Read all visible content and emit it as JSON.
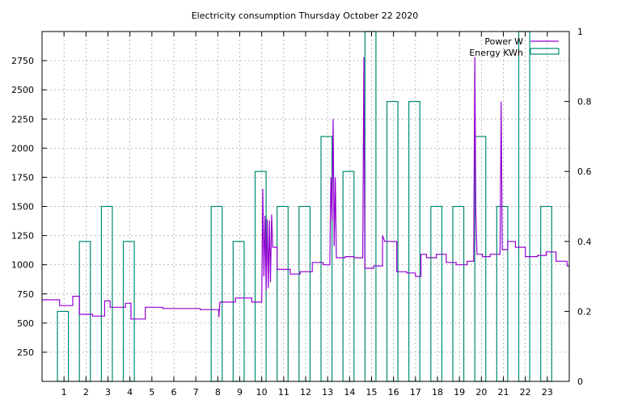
{
  "chart_data": {
    "type": "line",
    "title": "Electricity consumption Thursday October 22 2020",
    "xlabel": "",
    "ylabel": "",
    "y2label": "",
    "xlim": [
      0,
      24
    ],
    "ylim": [
      0,
      3000
    ],
    "y2lim": [
      0,
      1
    ],
    "x_ticks": [
      1,
      2,
      3,
      4,
      5,
      6,
      7,
      8,
      9,
      10,
      11,
      12,
      13,
      14,
      15,
      16,
      17,
      18,
      19,
      20,
      21,
      22,
      23
    ],
    "y_ticks": [
      250,
      500,
      750,
      1000,
      1250,
      1500,
      1750,
      2000,
      2250,
      2500,
      2750
    ],
    "y2_ticks": [
      0,
      0.2,
      0.4,
      0.6,
      0.8,
      1
    ],
    "grid": true,
    "legend_position": "top-right",
    "series": [
      {
        "name": "Power W",
        "kind": "step-line",
        "axis": "y",
        "color": "#9400d3",
        "points": [
          [
            0.0,
            700
          ],
          [
            0.8,
            700
          ],
          [
            0.8,
            650
          ],
          [
            1.4,
            650
          ],
          [
            1.4,
            730
          ],
          [
            1.7,
            730
          ],
          [
            1.7,
            575
          ],
          [
            2.3,
            575
          ],
          [
            2.3,
            560
          ],
          [
            2.85,
            560
          ],
          [
            2.85,
            690
          ],
          [
            3.1,
            690
          ],
          [
            3.1,
            635
          ],
          [
            3.8,
            635
          ],
          [
            3.8,
            670
          ],
          [
            4.05,
            670
          ],
          [
            4.05,
            535
          ],
          [
            4.7,
            535
          ],
          [
            4.7,
            635
          ],
          [
            5.5,
            635
          ],
          [
            5.5,
            625
          ],
          [
            7.2,
            625
          ],
          [
            7.2,
            615
          ],
          [
            8.05,
            615
          ],
          [
            8.05,
            550
          ],
          [
            8.1,
            680
          ],
          [
            8.8,
            680
          ],
          [
            8.8,
            715
          ],
          [
            9.55,
            715
          ],
          [
            9.55,
            680
          ],
          [
            10.0,
            680
          ],
          [
            10.05,
            1650
          ],
          [
            10.1,
            900
          ],
          [
            10.15,
            1420
          ],
          [
            10.2,
            780
          ],
          [
            10.25,
            1390
          ],
          [
            10.3,
            800
          ],
          [
            10.35,
            1380
          ],
          [
            10.4,
            850
          ],
          [
            10.45,
            1430
          ],
          [
            10.5,
            1150
          ],
          [
            10.7,
            1150
          ],
          [
            10.7,
            960
          ],
          [
            11.3,
            960
          ],
          [
            11.3,
            920
          ],
          [
            11.75,
            920
          ],
          [
            11.75,
            940
          ],
          [
            12.3,
            940
          ],
          [
            12.3,
            1020
          ],
          [
            12.8,
            1020
          ],
          [
            12.8,
            1000
          ],
          [
            13.1,
            1000
          ],
          [
            13.15,
            1750
          ],
          [
            13.2,
            1380
          ],
          [
            13.25,
            2250
          ],
          [
            13.3,
            1160
          ],
          [
            13.35,
            1750
          ],
          [
            13.4,
            1060
          ],
          [
            13.8,
            1060
          ],
          [
            13.8,
            1070
          ],
          [
            14.2,
            1070
          ],
          [
            14.2,
            1060
          ],
          [
            14.6,
            1060
          ],
          [
            14.65,
            2780
          ],
          [
            14.7,
            970
          ],
          [
            15.1,
            970
          ],
          [
            15.1,
            990
          ],
          [
            15.5,
            990
          ],
          [
            15.5,
            1250
          ],
          [
            15.6,
            1200
          ],
          [
            16.15,
            1200
          ],
          [
            16.15,
            940
          ],
          [
            16.6,
            940
          ],
          [
            16.6,
            930
          ],
          [
            17.0,
            930
          ],
          [
            17.0,
            900
          ],
          [
            17.25,
            900
          ],
          [
            17.25,
            1090
          ],
          [
            17.5,
            1090
          ],
          [
            17.5,
            1060
          ],
          [
            17.95,
            1060
          ],
          [
            17.95,
            1090
          ],
          [
            18.4,
            1090
          ],
          [
            18.4,
            1020
          ],
          [
            18.85,
            1020
          ],
          [
            18.85,
            1000
          ],
          [
            19.35,
            1000
          ],
          [
            19.35,
            1030
          ],
          [
            19.65,
            1030
          ],
          [
            19.7,
            2780
          ],
          [
            19.75,
            1440
          ],
          [
            19.8,
            1090
          ],
          [
            20.05,
            1090
          ],
          [
            20.05,
            1070
          ],
          [
            20.4,
            1070
          ],
          [
            20.4,
            1090
          ],
          [
            20.85,
            1090
          ],
          [
            20.9,
            2400
          ],
          [
            20.95,
            1130
          ],
          [
            21.2,
            1130
          ],
          [
            21.2,
            1200
          ],
          [
            21.55,
            1200
          ],
          [
            21.55,
            1150
          ],
          [
            22.0,
            1150
          ],
          [
            22.0,
            1070
          ],
          [
            22.55,
            1070
          ],
          [
            22.55,
            1080
          ],
          [
            22.95,
            1080
          ],
          [
            22.95,
            1110
          ],
          [
            23.4,
            1110
          ],
          [
            23.4,
            1030
          ],
          [
            23.9,
            1030
          ],
          [
            23.9,
            990
          ],
          [
            24.0,
            990
          ]
        ]
      },
      {
        "name": "Energy KWh",
        "kind": "boxes",
        "axis": "y2",
        "color": "#008b72",
        "bars": [
          {
            "start": 0.7,
            "end": 1.2,
            "value": 0.2
          },
          {
            "start": 1.7,
            "end": 2.2,
            "value": 0.4
          },
          {
            "start": 2.7,
            "end": 3.2,
            "value": 0.5
          },
          {
            "start": 3.7,
            "end": 4.2,
            "value": 0.4
          },
          {
            "start": 7.7,
            "end": 8.2,
            "value": 0.5
          },
          {
            "start": 8.7,
            "end": 9.2,
            "value": 0.4
          },
          {
            "start": 9.7,
            "end": 10.2,
            "value": 0.6
          },
          {
            "start": 10.7,
            "end": 11.2,
            "value": 0.5
          },
          {
            "start": 11.7,
            "end": 12.2,
            "value": 0.5
          },
          {
            "start": 12.7,
            "end": 13.2,
            "value": 0.7
          },
          {
            "start": 13.7,
            "end": 14.2,
            "value": 0.6
          },
          {
            "start": 14.7,
            "end": 15.2,
            "value": 1.0
          },
          {
            "start": 15.7,
            "end": 16.2,
            "value": 0.8
          },
          {
            "start": 16.7,
            "end": 17.2,
            "value": 0.8
          },
          {
            "start": 17.7,
            "end": 18.2,
            "value": 0.5
          },
          {
            "start": 18.7,
            "end": 19.2,
            "value": 0.5
          },
          {
            "start": 19.7,
            "end": 20.2,
            "value": 0.7
          },
          {
            "start": 20.7,
            "end": 21.2,
            "value": 0.5
          },
          {
            "start": 21.7,
            "end": 22.2,
            "value": 1.0
          },
          {
            "start": 22.7,
            "end": 23.2,
            "value": 0.5
          }
        ]
      }
    ]
  }
}
